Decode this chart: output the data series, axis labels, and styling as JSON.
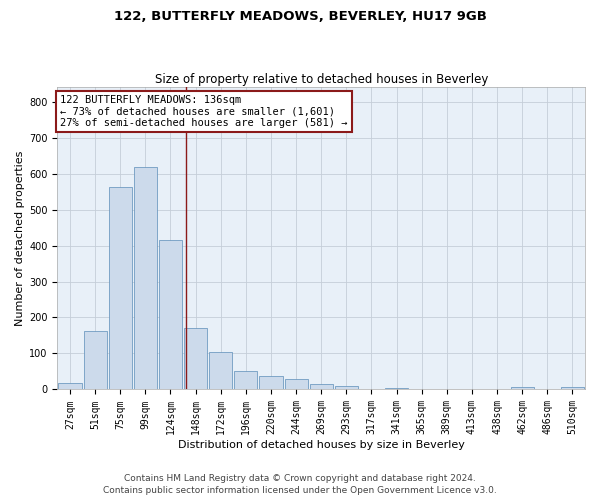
{
  "title1": "122, BUTTERFLY MEADOWS, BEVERLEY, HU17 9GB",
  "title2": "Size of property relative to detached houses in Beverley",
  "xlabel": "Distribution of detached houses by size in Beverley",
  "ylabel": "Number of detached properties",
  "footnote1": "Contains HM Land Registry data © Crown copyright and database right 2024.",
  "footnote2": "Contains public sector information licensed under the Open Government Licence v3.0.",
  "bar_color": "#ccdaeb",
  "bar_edge_color": "#5b8db8",
  "grid_color": "#c5ced8",
  "background_color": "#e8f0f8",
  "vline_color": "#8b1a1a",
  "annotation_box_color": "#8b1a1a",
  "categories": [
    "27sqm",
    "51sqm",
    "75sqm",
    "99sqm",
    "124sqm",
    "148sqm",
    "172sqm",
    "196sqm",
    "220sqm",
    "244sqm",
    "269sqm",
    "293sqm",
    "317sqm",
    "341sqm",
    "365sqm",
    "389sqm",
    "413sqm",
    "438sqm",
    "462sqm",
    "486sqm",
    "510sqm"
  ],
  "values": [
    18,
    163,
    563,
    618,
    415,
    170,
    103,
    52,
    38,
    30,
    14,
    10,
    2,
    5,
    0,
    0,
    0,
    0,
    7,
    0,
    7
  ],
  "ylim": [
    0,
    840
  ],
  "yticks": [
    0,
    100,
    200,
    300,
    400,
    500,
    600,
    700,
    800
  ],
  "property_label": "122 BUTTERFLY MEADOWS: 136sqm",
  "annotation_line1": "← 73% of detached houses are smaller (1,601)",
  "annotation_line2": "27% of semi-detached houses are larger (581) →",
  "vline_x_index": 4.62,
  "title_fontsize": 9.5,
  "subtitle_fontsize": 8.5,
  "axis_label_fontsize": 8,
  "tick_fontsize": 7,
  "annotation_fontsize": 7.5,
  "footnote_fontsize": 6.5
}
